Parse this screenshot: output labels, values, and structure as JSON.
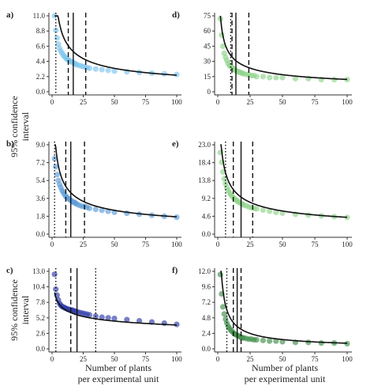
{
  "figure": {
    "ylabel_line1": "95% confidence",
    "ylabel_line2": "interval",
    "xlabel_line1": "Number of plants",
    "xlabel_line2": "per experimental unit"
  },
  "chart_data": [
    {
      "panel": "a)",
      "type": "scatter",
      "color": "#7cc4ec",
      "ylim": [
        0,
        11.0
      ],
      "yticks": [
        "0.0",
        "2.2",
        "4.4",
        "6.6",
        "8.8",
        "11.0"
      ],
      "xticks": [
        "0",
        "25",
        "50",
        "75",
        "100"
      ],
      "xlim": [
        0,
        100
      ],
      "x": [
        2,
        3,
        4,
        5,
        6,
        7,
        8,
        9,
        10,
        11,
        12,
        13,
        14,
        15,
        16,
        17,
        18,
        19,
        20,
        22,
        24,
        26,
        28,
        30,
        35,
        40,
        45,
        50,
        60,
        70,
        80,
        90,
        100
      ],
      "y": [
        11.0,
        8.9,
        7.8,
        6.9,
        6.3,
        5.9,
        5.6,
        5.3,
        5.1,
        4.9,
        4.7,
        4.6,
        4.5,
        4.4,
        4.3,
        4.2,
        4.1,
        4.0,
        3.9,
        3.8,
        3.7,
        3.6,
        3.5,
        3.4,
        3.3,
        3.2,
        3.1,
        3.0,
        2.9,
        2.8,
        2.7,
        2.6,
        2.5
      ],
      "fit_k": 24.0,
      "fit_p": 0.5,
      "vlines": [
        {
          "x": 3,
          "style": "dotted"
        },
        {
          "x": 13,
          "style": "dashed"
        },
        {
          "x": 17,
          "style": "solid"
        },
        {
          "x": 27,
          "style": "dashed"
        }
      ]
    },
    {
      "panel": "d)",
      "type": "scatter",
      "color": "#8fd48a",
      "ylim": [
        0,
        75
      ],
      "yticks": [
        "0",
        "15",
        "30",
        "45",
        "60",
        "75"
      ],
      "xticks": [
        "0",
        "25",
        "50",
        "75",
        "100"
      ],
      "xlim": [
        0,
        100
      ],
      "x": [
        2,
        3,
        4,
        5,
        6,
        7,
        8,
        9,
        10,
        11,
        12,
        13,
        14,
        15,
        16,
        17,
        18,
        19,
        20,
        22,
        24,
        26,
        28,
        30,
        35,
        40,
        45,
        50,
        60,
        70,
        80,
        90,
        100
      ],
      "y": [
        72,
        56,
        45,
        38,
        34,
        31,
        28,
        26,
        25,
        24,
        23,
        22,
        21,
        20,
        20,
        19,
        19,
        18,
        18,
        17,
        17,
        16,
        16,
        15,
        15,
        14,
        14,
        14,
        13,
        13,
        12,
        12,
        12
      ],
      "fit_k": 106.0,
      "fit_p": 0.47,
      "vlines": [
        {
          "x": 10,
          "style": "dotted"
        },
        {
          "x": 11,
          "style": "dashed"
        },
        {
          "x": 14,
          "style": "solid"
        },
        {
          "x": 24,
          "style": "dashed"
        }
      ]
    },
    {
      "panel": "b)",
      "type": "scatter",
      "color": "#5b9bd8",
      "ylim": [
        0,
        9.0
      ],
      "yticks": [
        "0.0",
        "1.8",
        "3.6",
        "5.4",
        "7.2",
        "9.0"
      ],
      "xticks": [
        "0",
        "25",
        "50",
        "75",
        "100"
      ],
      "xlim": [
        0,
        100
      ],
      "x": [
        2,
        3,
        4,
        5,
        6,
        7,
        8,
        9,
        10,
        11,
        12,
        13,
        14,
        15,
        16,
        17,
        18,
        19,
        20,
        22,
        24,
        26,
        28,
        30,
        35,
        40,
        45,
        50,
        60,
        70,
        80,
        90,
        100
      ],
      "y": [
        7.6,
        6.8,
        6.0,
        5.4,
        5.0,
        4.7,
        4.4,
        4.2,
        4.0,
        3.8,
        3.7,
        3.6,
        3.5,
        3.4,
        3.3,
        3.2,
        3.2,
        3.1,
        3.0,
        2.9,
        2.8,
        2.8,
        2.7,
        2.6,
        2.5,
        2.4,
        2.3,
        2.2,
        2.1,
        2.0,
        1.9,
        1.8,
        1.7
      ],
      "fit_k": 14.5,
      "fit_p": 0.46,
      "vlines": [
        {
          "x": 2,
          "style": "dotted"
        },
        {
          "x": 11,
          "style": "dashed"
        },
        {
          "x": 15,
          "style": "solid"
        },
        {
          "x": 26,
          "style": "dashed"
        }
      ]
    },
    {
      "panel": "e)",
      "type": "scatter",
      "color": "#8fd48a",
      "ylim": [
        0,
        23.0
      ],
      "yticks": [
        "0.0",
        "4.6",
        "9.2",
        "13.8",
        "18.4",
        "23.0"
      ],
      "xticks": [
        "0",
        "25",
        "50",
        "75",
        "100"
      ],
      "xlim": [
        0,
        100
      ],
      "x": [
        2,
        3,
        4,
        5,
        6,
        7,
        8,
        9,
        10,
        11,
        12,
        13,
        14,
        15,
        16,
        17,
        18,
        19,
        20,
        22,
        24,
        26,
        28,
        30,
        35,
        40,
        45,
        50,
        60,
        70,
        80,
        90,
        100
      ],
      "y": [
        21.0,
        18.5,
        16.0,
        14.2,
        13.0,
        12.0,
        11.3,
        10.7,
        10.2,
        9.8,
        9.4,
        9.1,
        8.8,
        8.5,
        8.3,
        8.1,
        7.9,
        7.7,
        7.5,
        7.3,
        7.0,
        6.8,
        6.6,
        6.5,
        6.2,
        5.9,
        5.6,
        5.4,
        5.1,
        4.9,
        4.7,
        4.5,
        4.3
      ],
      "fit_k": 36.0,
      "fit_p": 0.46,
      "vlines": [
        {
          "x": 6,
          "style": "dotted"
        },
        {
          "x": 12,
          "style": "dashed"
        },
        {
          "x": 18,
          "style": "solid"
        },
        {
          "x": 27,
          "style": "dashed"
        }
      ]
    },
    {
      "panel": "c)",
      "type": "scatter",
      "color": "#2e3aa8",
      "ylim": [
        0,
        13.0
      ],
      "yticks": [
        "0.0",
        "2.6",
        "5.2",
        "7.8",
        "10.4",
        "13.0"
      ],
      "xticks": [
        "0",
        "25",
        "50",
        "75",
        "100"
      ],
      "xlim": [
        0,
        100
      ],
      "x": [
        2,
        3,
        4,
        5,
        6,
        7,
        8,
        9,
        10,
        11,
        12,
        13,
        14,
        15,
        16,
        17,
        18,
        19,
        20,
        22,
        24,
        26,
        28,
        30,
        35,
        40,
        45,
        50,
        60,
        70,
        80,
        90,
        100
      ],
      "y": [
        12.5,
        10.0,
        9.0,
        8.2,
        7.6,
        7.3,
        7.1,
        7.0,
        6.9,
        6.8,
        6.7,
        6.6,
        6.6,
        6.5,
        6.5,
        6.4,
        6.3,
        6.3,
        6.2,
        6.1,
        6.0,
        5.9,
        5.8,
        5.7,
        5.5,
        5.3,
        5.2,
        5.1,
        4.9,
        4.7,
        4.5,
        4.3,
        4.1
      ],
      "fit_k": 11.0,
      "fit_p": 0.22,
      "vlines": [
        {
          "x": 3,
          "style": "dotted"
        },
        {
          "x": 15,
          "style": "dashed"
        },
        {
          "x": 20,
          "style": "solid"
        },
        {
          "x": 35,
          "style": "dotted"
        }
      ]
    },
    {
      "panel": "f)",
      "type": "scatter",
      "color": "#3f8f4a",
      "ylim": [
        0,
        12.0
      ],
      "yticks": [
        "0.0",
        "2.4",
        "4.8",
        "7.2",
        "9.6",
        "12.0"
      ],
      "xticks": [
        "0",
        "25",
        "50",
        "75",
        "100"
      ],
      "xlim": [
        0,
        100
      ],
      "x": [
        2,
        3,
        4,
        5,
        6,
        7,
        8,
        9,
        10,
        11,
        12,
        13,
        14,
        15,
        16,
        17,
        18,
        19,
        20,
        22,
        24,
        26,
        28,
        30,
        35,
        40,
        45,
        50,
        60,
        70,
        80,
        90,
        100
      ],
      "y": [
        11.5,
        8.5,
        6.5,
        5.4,
        4.6,
        4.0,
        3.5,
        3.2,
        2.9,
        2.7,
        2.5,
        2.3,
        2.2,
        2.1,
        2.0,
        1.9,
        1.8,
        1.7,
        1.7,
        1.6,
        1.5,
        1.5,
        1.4,
        1.4,
        1.3,
        1.2,
        1.2,
        1.1,
        1.0,
        1.0,
        0.9,
        0.9,
        0.8
      ],
      "fit_k": 25.0,
      "fit_p": 0.73,
      "vlines": [
        {
          "x": 7,
          "style": "dotted"
        },
        {
          "x": 12,
          "style": "dashed"
        },
        {
          "x": 15,
          "style": "solid"
        },
        {
          "x": 18,
          "style": "dashed"
        }
      ]
    }
  ]
}
